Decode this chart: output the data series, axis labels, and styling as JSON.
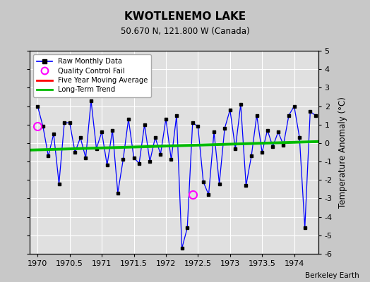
{
  "title": "KWOTLENEMO LAKE",
  "subtitle": "50.670 N, 121.800 W (Canada)",
  "ylabel": "Temperature Anomaly (°C)",
  "credit": "Berkeley Earth",
  "xlim": [
    1969.875,
    1974.375
  ],
  "ylim": [
    -6,
    5
  ],
  "yticks": [
    -6,
    -5,
    -4,
    -3,
    -2,
    -1,
    0,
    1,
    2,
    3,
    4,
    5
  ],
  "xticks": [
    1970,
    1970.5,
    1971,
    1971.5,
    1972,
    1972.5,
    1973,
    1973.5,
    1974
  ],
  "background_color": "#e0e0e0",
  "fig_color": "#c8c8c8",
  "raw_color": "#0000ff",
  "marker_color": "#000000",
  "trend_color": "#00bb00",
  "moving_avg_color": "#ff0000",
  "qc_fail_color": "#ff00ff",
  "monthly_x": [
    1970.0,
    1970.0833,
    1970.1667,
    1970.25,
    1970.3333,
    1970.4167,
    1970.5,
    1970.5833,
    1970.6667,
    1970.75,
    1970.8333,
    1970.9167,
    1971.0,
    1971.0833,
    1971.1667,
    1971.25,
    1971.3333,
    1971.4167,
    1971.5,
    1971.5833,
    1971.6667,
    1971.75,
    1971.8333,
    1971.9167,
    1972.0,
    1972.0833,
    1972.1667,
    1972.25,
    1972.3333,
    1972.4167,
    1972.5,
    1972.5833,
    1972.6667,
    1972.75,
    1972.8333,
    1972.9167,
    1973.0,
    1973.0833,
    1973.1667,
    1973.25,
    1973.3333,
    1973.4167,
    1973.5,
    1973.5833,
    1973.6667,
    1973.75,
    1973.8333,
    1973.9167,
    1974.0,
    1974.0833,
    1974.1667,
    1974.25,
    1974.3333
  ],
  "monthly_y": [
    2.0,
    0.9,
    -0.7,
    0.5,
    -2.2,
    1.1,
    1.1,
    -0.5,
    0.3,
    -0.8,
    2.3,
    -0.3,
    0.6,
    -1.2,
    0.7,
    -2.7,
    -0.9,
    1.3,
    -0.8,
    -1.1,
    1.0,
    -1.0,
    0.3,
    -0.6,
    1.3,
    -0.9,
    1.5,
    -5.7,
    -4.6,
    1.1,
    0.9,
    -2.1,
    -2.8,
    0.6,
    -2.2,
    0.8,
    1.8,
    -0.3,
    2.1,
    -2.3,
    -0.7,
    1.5,
    -0.5,
    0.7,
    -0.2,
    0.6,
    -0.1,
    1.5,
    2.0,
    0.3,
    -4.6,
    1.7,
    1.5
  ],
  "qc_fail_points": [
    [
      1970.0,
      0.9
    ],
    [
      1972.4167,
      -2.8
    ]
  ],
  "trend_x": [
    1969.875,
    1974.375
  ],
  "trend_y": [
    -0.38,
    0.08
  ],
  "xtick_labels": [
    "1970",
    "1970.5",
    "1971",
    "1971.5",
    "1972",
    "1972.5",
    "1973",
    "1973.5",
    "1974"
  ]
}
